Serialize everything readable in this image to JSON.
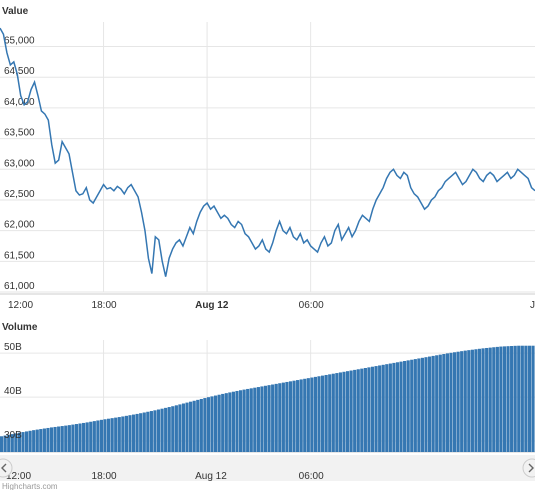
{
  "chart_data": [
    {
      "type": "line",
      "title": "Value",
      "xlabel": "",
      "ylabel": "",
      "x_ticks": [
        "12:00",
        "18:00",
        "Aug 12",
        "06:00",
        "J"
      ],
      "y_ticks": [
        "61,000",
        "61,500",
        "62,000",
        "62,500",
        "63,000",
        "63,500",
        "64,000",
        "64,500",
        "65,000"
      ],
      "ylim": [
        61000,
        65400
      ],
      "xlim_hours": [
        0,
        31
      ],
      "grid": true,
      "legend": "none",
      "color": "#3577b2",
      "series": [
        {
          "x_hours": [
            0.0,
            0.2,
            0.4,
            0.6,
            0.8,
            1.0,
            1.2,
            1.4,
            1.6,
            1.8,
            2.0,
            2.2,
            2.4,
            2.6,
            2.8,
            3.0,
            3.2,
            3.4,
            3.6,
            3.8,
            4.0,
            4.2,
            4.4,
            4.6,
            4.8,
            5.0,
            5.2,
            5.4,
            5.6,
            5.8,
            6.0,
            6.2,
            6.4,
            6.6,
            6.8,
            7.0,
            7.2,
            7.4,
            7.6,
            7.8,
            8.0,
            8.2,
            8.4,
            8.6,
            8.8,
            9.0,
            9.2,
            9.4,
            9.6,
            9.8,
            10.0,
            10.2,
            10.4,
            10.6,
            10.8,
            11.0,
            11.2,
            11.4,
            11.6,
            11.8,
            12.0,
            12.2,
            12.4,
            12.6,
            12.8,
            13.0,
            13.2,
            13.4,
            13.6,
            13.8,
            14.0,
            14.2,
            14.4,
            14.6,
            14.8,
            15.0,
            15.2,
            15.4,
            15.6,
            15.8,
            16.0,
            16.2,
            16.4,
            16.6,
            16.8,
            17.0,
            17.2,
            17.4,
            17.6,
            17.8,
            18.0,
            18.2,
            18.4,
            18.6,
            18.8,
            19.0,
            19.2,
            19.4,
            19.6,
            19.8,
            20.0,
            20.2,
            20.4,
            20.6,
            20.8,
            21.0,
            21.2,
            21.4,
            21.6,
            21.8,
            22.0,
            22.2,
            22.4,
            22.6,
            22.8,
            23.0,
            23.2,
            23.4,
            23.6,
            23.8,
            24.0,
            24.2,
            24.4,
            24.6,
            24.8,
            25.0,
            25.2,
            25.4,
            25.6,
            25.8,
            26.0,
            26.2,
            26.4,
            26.6,
            26.8,
            27.0,
            27.2,
            27.4,
            27.6,
            27.8,
            28.0,
            28.2,
            28.4,
            28.6,
            28.8,
            29.0,
            29.2,
            29.4,
            29.6,
            29.8,
            30.0,
            30.2,
            30.4,
            30.6,
            30.8,
            31.0
          ],
          "values": [
            65300,
            65200,
            64900,
            64700,
            64750,
            64550,
            64200,
            64050,
            64100,
            64300,
            64420,
            64200,
            63950,
            63900,
            63800,
            63400,
            63100,
            63150,
            63450,
            63350,
            63250,
            62950,
            62650,
            62580,
            62600,
            62700,
            62500,
            62450,
            62550,
            62650,
            62750,
            62680,
            62700,
            62650,
            62720,
            62680,
            62600,
            62700,
            62750,
            62650,
            62550,
            62300,
            62000,
            61550,
            61300,
            61900,
            61850,
            61500,
            61250,
            61550,
            61700,
            61800,
            61850,
            61750,
            61900,
            62050,
            61950,
            62150,
            62300,
            62400,
            62450,
            62350,
            62400,
            62300,
            62200,
            62250,
            62200,
            62100,
            62050,
            62150,
            62100,
            61950,
            61900,
            61800,
            61700,
            61750,
            61850,
            61700,
            61650,
            61800,
            62000,
            62150,
            62000,
            61950,
            62050,
            61900,
            61850,
            61950,
            61800,
            61850,
            61750,
            61700,
            61650,
            61800,
            61900,
            61750,
            61800,
            62000,
            62100,
            61850,
            61950,
            62050,
            61900,
            62000,
            62150,
            62250,
            62200,
            62150,
            62350,
            62500,
            62600,
            62700,
            62850,
            62950,
            63000,
            62900,
            62850,
            62950,
            62900,
            62700,
            62600,
            62550,
            62450,
            62350,
            62400,
            62500,
            62550,
            62650,
            62700,
            62800,
            62850,
            62900,
            62950,
            62850,
            62750,
            62800,
            62900,
            63000,
            62950,
            62850,
            62800,
            62900,
            62950,
            62900,
            62800,
            62850,
            62900,
            62950,
            62850,
            62900,
            63000,
            62950,
            62900,
            62850,
            62700,
            62650
          ]
        }
      ]
    },
    {
      "type": "bar",
      "title": "Volume",
      "xlabel": "",
      "ylabel": "",
      "x_ticks": [
        "12:00",
        "18:00",
        "Aug 12",
        "06:00"
      ],
      "y_ticks": [
        "30B",
        "40B",
        "50B"
      ],
      "ylim": [
        27500,
        53000
      ],
      "xlim_hours": [
        0,
        31
      ],
      "grid": true,
      "legend": "none",
      "color": "#3577b2",
      "series": [
        {
          "x_hours": [
            0,
            1,
            2,
            3,
            4,
            5,
            6,
            7,
            8,
            9,
            10,
            11,
            12,
            13,
            14,
            15,
            16,
            17,
            18,
            19,
            20,
            21,
            22,
            23,
            24,
            25,
            26,
            27,
            28,
            29,
            30
          ],
          "values": [
            31000,
            31800,
            32500,
            33100,
            33600,
            34200,
            34900,
            35500,
            36200,
            37000,
            37900,
            38900,
            39900,
            40800,
            41600,
            42300,
            43000,
            43700,
            44400,
            45100,
            45800,
            46500,
            47200,
            47900,
            48600,
            49300,
            50000,
            50600,
            51100,
            51500,
            51700
          ],
          "units": "millions"
        }
      ]
    }
  ],
  "credit": "Highcharts.com"
}
